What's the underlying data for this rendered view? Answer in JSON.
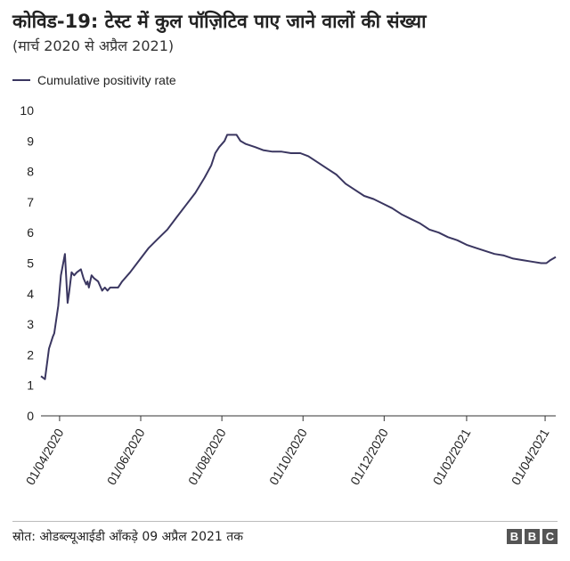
{
  "header": {
    "title": "कोविड-19: टेस्ट में कुल पॉज़िटिव पाए जाने वालों की संख्या",
    "subtitle": "(मार्च 2020 से अप्रैल 2021)"
  },
  "footer": {
    "source": "स्रोत: ओडब्ल्यूआईडी ऑंकड़े 09 अप्रैल 2021 तक",
    "logo_letters": [
      "B",
      "B",
      "C"
    ]
  },
  "colors": {
    "series_line": "#3a3660",
    "axis": "#333333",
    "logo_block": "#555555"
  },
  "chart_data": {
    "type": "line",
    "title": "कोविड-19: टेस्ट में कुल पॉज़िटिव पाए जाने वालों की संख्या",
    "subtitle": "(मार्च 2020 से अप्रैल 2021)",
    "xlabel": "",
    "ylabel": "",
    "ylim": [
      0,
      10
    ],
    "xlim": [
      "2020-03-18",
      "2021-04-09"
    ],
    "yticks": [
      0,
      1,
      2,
      3,
      4,
      5,
      6,
      7,
      8,
      9,
      10
    ],
    "xticks": [
      "2020-04-01",
      "2020-06-01",
      "2020-08-01",
      "2020-10-01",
      "2020-12-01",
      "2021-02-01",
      "2021-04-01"
    ],
    "xtick_labels": [
      "01/04/2020",
      "01/06/2020",
      "01/08/2020",
      "01/10/2020",
      "01/12/2020",
      "01/02/2021",
      "01/04/2021"
    ],
    "grid": false,
    "legend": "top-left",
    "series": [
      {
        "name": "Cumulative positivity rate",
        "color": "#3a3660",
        "points": [
          [
            "2020-03-18",
            1.3
          ],
          [
            "2020-03-21",
            1.2
          ],
          [
            "2020-03-24",
            2.2
          ],
          [
            "2020-03-27",
            2.6
          ],
          [
            "2020-03-28",
            2.7
          ],
          [
            "2020-03-31",
            3.6
          ],
          [
            "2020-04-02",
            4.6
          ],
          [
            "2020-04-05",
            5.3
          ],
          [
            "2020-04-07",
            3.7
          ],
          [
            "2020-04-08",
            4.0
          ],
          [
            "2020-04-10",
            4.7
          ],
          [
            "2020-04-12",
            4.6
          ],
          [
            "2020-04-14",
            4.7
          ],
          [
            "2020-04-17",
            4.8
          ],
          [
            "2020-04-19",
            4.5
          ],
          [
            "2020-04-21",
            4.3
          ],
          [
            "2020-04-22",
            4.4
          ],
          [
            "2020-04-23",
            4.2
          ],
          [
            "2020-04-25",
            4.6
          ],
          [
            "2020-04-27",
            4.5
          ],
          [
            "2020-04-30",
            4.4
          ],
          [
            "2020-05-03",
            4.1
          ],
          [
            "2020-05-05",
            4.2
          ],
          [
            "2020-05-07",
            4.1
          ],
          [
            "2020-05-09",
            4.2
          ],
          [
            "2020-05-12",
            4.2
          ],
          [
            "2020-05-15",
            4.2
          ],
          [
            "2020-05-18",
            4.4
          ],
          [
            "2020-05-24",
            4.7
          ],
          [
            "2020-05-31",
            5.1
          ],
          [
            "2020-06-07",
            5.5
          ],
          [
            "2020-06-14",
            5.8
          ],
          [
            "2020-06-21",
            6.1
          ],
          [
            "2020-06-28",
            6.5
          ],
          [
            "2020-07-05",
            6.9
          ],
          [
            "2020-07-12",
            7.3
          ],
          [
            "2020-07-19",
            7.8
          ],
          [
            "2020-07-24",
            8.2
          ],
          [
            "2020-07-27",
            8.6
          ],
          [
            "2020-07-30",
            8.8
          ],
          [
            "2020-08-03",
            9.0
          ],
          [
            "2020-08-05",
            9.2
          ],
          [
            "2020-08-08",
            9.2
          ],
          [
            "2020-08-12",
            9.2
          ],
          [
            "2020-08-15",
            9.0
          ],
          [
            "2020-08-19",
            8.9
          ],
          [
            "2020-08-26",
            8.8
          ],
          [
            "2020-09-01",
            8.7
          ],
          [
            "2020-09-08",
            8.65
          ],
          [
            "2020-09-15",
            8.65
          ],
          [
            "2020-09-22",
            8.6
          ],
          [
            "2020-09-29",
            8.6
          ],
          [
            "2020-10-05",
            8.5
          ],
          [
            "2020-10-12",
            8.3
          ],
          [
            "2020-10-19",
            8.1
          ],
          [
            "2020-10-26",
            7.9
          ],
          [
            "2020-11-02",
            7.6
          ],
          [
            "2020-11-09",
            7.4
          ],
          [
            "2020-11-16",
            7.2
          ],
          [
            "2020-11-23",
            7.1
          ],
          [
            "2020-11-30",
            6.95
          ],
          [
            "2020-12-07",
            6.8
          ],
          [
            "2020-12-14",
            6.6
          ],
          [
            "2020-12-21",
            6.45
          ],
          [
            "2020-12-28",
            6.3
          ],
          [
            "2021-01-04",
            6.1
          ],
          [
            "2021-01-11",
            6.0
          ],
          [
            "2021-01-18",
            5.85
          ],
          [
            "2021-01-25",
            5.75
          ],
          [
            "2021-02-01",
            5.6
          ],
          [
            "2021-02-08",
            5.5
          ],
          [
            "2021-02-15",
            5.4
          ],
          [
            "2021-02-22",
            5.3
          ],
          [
            "2021-03-01",
            5.25
          ],
          [
            "2021-03-08",
            5.15
          ],
          [
            "2021-03-15",
            5.1
          ],
          [
            "2021-03-22",
            5.05
          ],
          [
            "2021-03-29",
            5.0
          ],
          [
            "2021-04-02",
            5.0
          ],
          [
            "2021-04-05",
            5.1
          ],
          [
            "2021-04-07",
            5.15
          ],
          [
            "2021-04-09",
            5.2
          ]
        ]
      }
    ]
  }
}
